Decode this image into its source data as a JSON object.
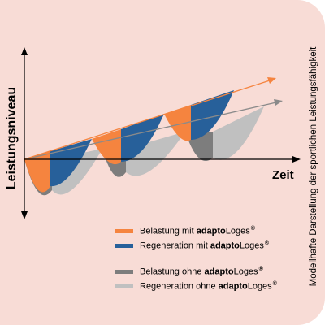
{
  "diagram": {
    "y_axis_label": "Leistungsniveau",
    "x_axis_label": "Zeit",
    "vertical_title": "Modellhafte Darstellung der sportlichen Leistungsfähigkeit"
  },
  "legend": {
    "brand_bold": "adapto",
    "brand_rest": "Loges",
    "reg_mark": "®",
    "items": [
      {
        "prefix": "Belastung mit ",
        "color": "#f5843f"
      },
      {
        "prefix": "Regeneration mit ",
        "color": "#27609a"
      },
      {
        "prefix": "Belastung ohne ",
        "color": "#7d7d7d"
      },
      {
        "prefix": "Regeneration ohne ",
        "color": "#c0c0c0"
      }
    ]
  },
  "colors": {
    "card_background": "#f8dcd6",
    "orange": "#f5843f",
    "blue": "#27609a",
    "dark_gray": "#7d7d7d",
    "light_gray": "#c0c0c0"
  }
}
